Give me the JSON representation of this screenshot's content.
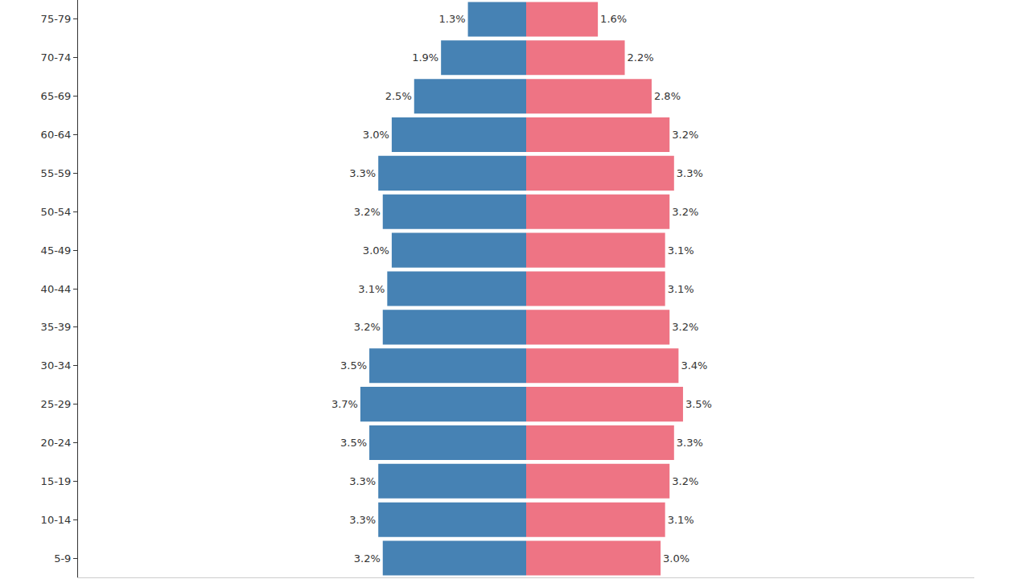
{
  "chart_data": {
    "type": "bar",
    "orientation": "horizontal",
    "categories": [
      "5-9",
      "10-14",
      "15-19",
      "20-24",
      "25-29",
      "30-34",
      "35-39",
      "40-44",
      "45-49",
      "50-54",
      "55-59",
      "60-64",
      "65-69",
      "70-74",
      "75-79"
    ],
    "series": [
      {
        "color": "#4682b4",
        "values": [
          3.2,
          3.3,
          3.3,
          3.5,
          3.7,
          3.5,
          3.2,
          3.1,
          3.0,
          3.2,
          3.3,
          3.0,
          2.5,
          1.9,
          1.3
        ],
        "value_labels": [
          "3.2%",
          "3.3%",
          "3.3%",
          "3.5%",
          "3.7%",
          "3.5%",
          "3.2%",
          "3.1%",
          "3.0%",
          "3.2%",
          "3.3%",
          "3.0%",
          "2.5%",
          "1.9%",
          "1.3%"
        ]
      },
      {
        "color": "#ee7484",
        "values": [
          3.0,
          3.1,
          3.2,
          3.3,
          3.5,
          3.4,
          3.2,
          3.1,
          3.1,
          3.2,
          3.3,
          3.2,
          2.8,
          2.2,
          1.6
        ],
        "value_labels": [
          "3.0%",
          "3.1%",
          "3.2%",
          "3.3%",
          "3.5%",
          "3.4%",
          "3.2%",
          "3.1%",
          "3.1%",
          "3.2%",
          "3.3%",
          "3.2%",
          "2.8%",
          "2.2%",
          "1.6%"
        ]
      }
    ],
    "xlim": [
      0,
      10
    ],
    "data_labels": true,
    "tick_labels": "y",
    "grid": false
  }
}
